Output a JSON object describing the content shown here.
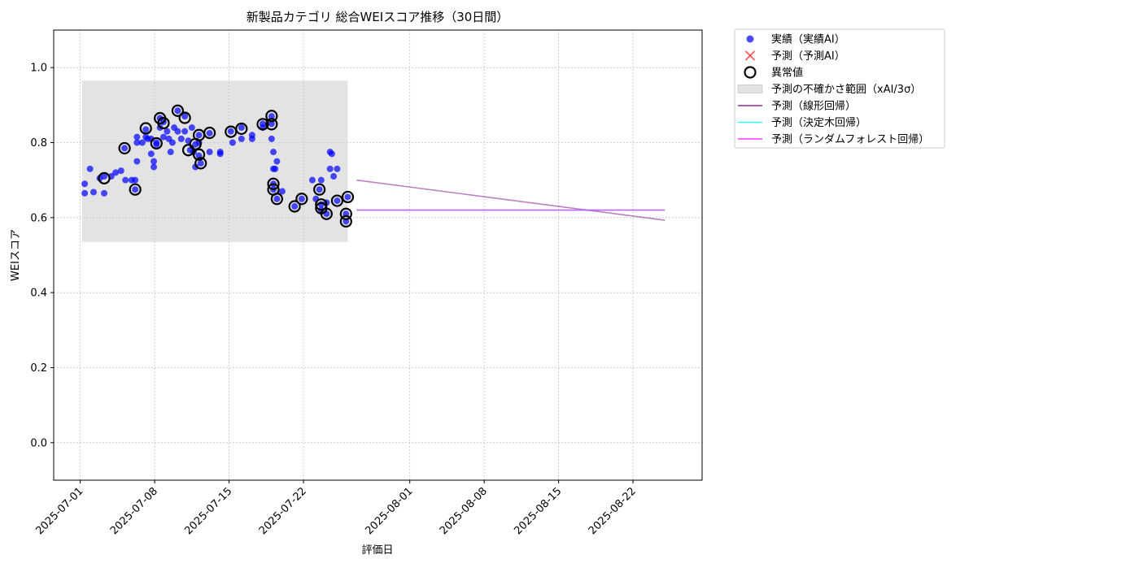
{
  "chart_data": {
    "type": "scatter",
    "title": "新製品カテゴリ 総合WEIスコア推移（30日間）",
    "xlabel": "評価日",
    "ylabel": "WEIスコア",
    "ylim": [
      -0.1,
      1.1
    ],
    "xlim": [
      "2025-06-28T12:00",
      "2025-08-28T12:00"
    ],
    "grid": true,
    "legend_position": "outside-top-right",
    "x_ticks": [
      "2025-07-01",
      "2025-07-08",
      "2025-07-15",
      "2025-07-22",
      "2025-08-01",
      "2025-08-08",
      "2025-08-15",
      "2025-08-22"
    ],
    "y_ticks": [
      0.0,
      0.2,
      0.4,
      0.6,
      0.8,
      1.0
    ],
    "y_tick_labels": [
      "0.0",
      "0.2",
      "0.4",
      "0.6",
      "0.8",
      "1.0"
    ],
    "legend": [
      {
        "label": "実績（実績AI）",
        "marker": "dot",
        "color": "#0000ff"
      },
      {
        "label": "予測（予測AI）",
        "marker": "x",
        "color": "#ff3333"
      },
      {
        "label": "異常値",
        "marker": "ring",
        "color": "#000000"
      },
      {
        "label": "予測の不確かさ範囲（xAI/3σ）",
        "marker": "band",
        "color": "#c8c8c8"
      },
      {
        "label": "予測（線形回帰）",
        "marker": "line",
        "color": "#912a9c"
      },
      {
        "label": "予測（決定木回帰）",
        "marker": "line",
        "color": "#00ffff"
      },
      {
        "label": "予測（ランダムフォレスト回帰）",
        "marker": "line",
        "color": "#ff00ff"
      }
    ],
    "actual": [
      [
        "2025-07-01T10:00",
        0.69
      ],
      [
        "2025-07-01T10:00",
        0.665
      ],
      [
        "2025-07-01T22:00",
        0.73
      ],
      [
        "2025-07-02T06:00",
        0.668
      ],
      [
        "2025-07-02T20:00",
        0.705
      ],
      [
        "2025-07-03T06:00",
        0.665
      ],
      [
        "2025-07-03T06:00",
        0.71
      ],
      [
        "2025-07-03T22:00",
        0.71
      ],
      [
        "2025-07-04T08:00",
        0.72
      ],
      [
        "2025-07-04T20:00",
        0.725
      ],
      [
        "2025-07-05T04:00",
        0.785
      ],
      [
        "2025-07-05T06:00",
        0.7
      ],
      [
        "2025-07-05T20:00",
        0.7
      ],
      [
        "2025-07-06T04:00",
        0.7
      ],
      [
        "2025-07-06T04:00",
        0.675
      ],
      [
        "2025-07-06T08:00",
        0.8
      ],
      [
        "2025-07-06T08:00",
        0.815
      ],
      [
        "2025-07-06T08:00",
        0.75
      ],
      [
        "2025-07-06T20:00",
        0.8
      ],
      [
        "2025-07-07T04:00",
        0.815
      ],
      [
        "2025-07-07T04:00",
        0.835
      ],
      [
        "2025-07-07T08:00",
        0.81
      ],
      [
        "2025-07-07T16:00",
        0.81
      ],
      [
        "2025-07-07T16:00",
        0.77
      ],
      [
        "2025-07-07T22:00",
        0.75
      ],
      [
        "2025-07-07T22:00",
        0.735
      ],
      [
        "2025-07-08T04:00",
        0.8
      ],
      [
        "2025-07-08T04:00",
        0.795
      ],
      [
        "2025-07-08T12:00",
        0.865
      ],
      [
        "2025-07-08T12:00",
        0.84
      ],
      [
        "2025-07-08T20:00",
        0.855
      ],
      [
        "2025-07-08T20:00",
        0.815
      ],
      [
        "2025-07-09T04:00",
        0.83
      ],
      [
        "2025-07-09T08:00",
        0.81
      ],
      [
        "2025-07-09T12:00",
        0.775
      ],
      [
        "2025-07-09T16:00",
        0.8
      ],
      [
        "2025-07-09T20:00",
        0.84
      ],
      [
        "2025-07-10T04:00",
        0.885
      ],
      [
        "2025-07-10T04:00",
        0.83
      ],
      [
        "2025-07-10T12:00",
        0.81
      ],
      [
        "2025-07-10T20:00",
        0.87
      ],
      [
        "2025-07-10T20:00",
        0.83
      ],
      [
        "2025-07-11T04:00",
        0.805
      ],
      [
        "2025-07-11T08:00",
        0.78
      ],
      [
        "2025-07-11T12:00",
        0.84
      ],
      [
        "2025-07-11T16:00",
        0.775
      ],
      [
        "2025-07-11T20:00",
        0.735
      ],
      [
        "2025-07-11T20:00",
        0.795
      ],
      [
        "2025-07-12T04:00",
        0.82
      ],
      [
        "2025-07-12T04:00",
        0.8
      ],
      [
        "2025-07-12T04:00",
        0.765
      ],
      [
        "2025-07-12T08:00",
        0.745
      ],
      [
        "2025-07-13T04:00",
        0.825
      ],
      [
        "2025-07-13T04:00",
        0.775
      ],
      [
        "2025-07-14T04:00",
        0.77
      ],
      [
        "2025-07-14T04:00",
        0.775
      ],
      [
        "2025-07-15T04:00",
        0.83
      ],
      [
        "2025-07-15T08:00",
        0.8
      ],
      [
        "2025-07-16T04:00",
        0.84
      ],
      [
        "2025-07-16T04:00",
        0.81
      ],
      [
        "2025-07-17T04:00",
        0.82
      ],
      [
        "2025-07-17T04:00",
        0.81
      ],
      [
        "2025-07-18T04:00",
        0.85
      ],
      [
        "2025-07-18T04:00",
        0.84
      ],
      [
        "2025-07-19T00:00",
        0.87
      ],
      [
        "2025-07-19T00:00",
        0.85
      ],
      [
        "2025-07-19T00:00",
        0.81
      ],
      [
        "2025-07-19T04:00",
        0.775
      ],
      [
        "2025-07-19T04:00",
        0.73
      ],
      [
        "2025-07-19T04:00",
        0.69
      ],
      [
        "2025-07-19T04:00",
        0.675
      ],
      [
        "2025-07-19T08:00",
        0.73
      ],
      [
        "2025-07-19T12:00",
        0.75
      ],
      [
        "2025-07-19T12:00",
        0.65
      ],
      [
        "2025-07-20T00:00",
        0.67
      ],
      [
        "2025-07-21T04:00",
        0.63
      ],
      [
        "2025-07-21T20:00",
        0.65
      ],
      [
        "2025-07-22T20:00",
        0.7
      ],
      [
        "2025-07-23T04:00",
        0.65
      ],
      [
        "2025-07-23T12:00",
        0.675
      ],
      [
        "2025-07-23T16:00",
        0.7
      ],
      [
        "2025-07-23T16:00",
        0.635
      ],
      [
        "2025-07-23T16:00",
        0.62
      ],
      [
        "2025-07-24T04:00",
        0.61
      ],
      [
        "2025-07-24T04:00",
        0.64
      ],
      [
        "2025-07-24T12:00",
        0.73
      ],
      [
        "2025-07-24T12:00",
        0.775
      ],
      [
        "2025-07-24T16:00",
        0.77
      ],
      [
        "2025-07-24T20:00",
        0.71
      ],
      [
        "2025-07-25T04:00",
        0.73
      ],
      [
        "2025-07-25T04:00",
        0.645
      ],
      [
        "2025-07-26T00:00",
        0.61
      ],
      [
        "2025-07-26T00:00",
        0.59
      ],
      [
        "2025-07-26T04:00",
        0.655
      ]
    ],
    "anomalies": [
      [
        "2025-07-03T06:00",
        0.705
      ],
      [
        "2025-07-05T04:00",
        0.785
      ],
      [
        "2025-07-06T04:00",
        0.675
      ],
      [
        "2025-07-07T04:00",
        0.838
      ],
      [
        "2025-07-08T04:00",
        0.798
      ],
      [
        "2025-07-08T12:00",
        0.865
      ],
      [
        "2025-07-08T20:00",
        0.852
      ],
      [
        "2025-07-10T04:00",
        0.885
      ],
      [
        "2025-07-10T20:00",
        0.866
      ],
      [
        "2025-07-11T04:00",
        0.78
      ],
      [
        "2025-07-11T20:00",
        0.796
      ],
      [
        "2025-07-12T04:00",
        0.82
      ],
      [
        "2025-07-12T04:00",
        0.768
      ],
      [
        "2025-07-12T08:00",
        0.745
      ],
      [
        "2025-07-13T04:00",
        0.826
      ],
      [
        "2025-07-15T04:00",
        0.829
      ],
      [
        "2025-07-16T04:00",
        0.837
      ],
      [
        "2025-07-18T04:00",
        0.849
      ],
      [
        "2025-07-19T00:00",
        0.871
      ],
      [
        "2025-07-19T00:00",
        0.849
      ],
      [
        "2025-07-19T04:00",
        0.69
      ],
      [
        "2025-07-19T04:00",
        0.675
      ],
      [
        "2025-07-19T12:00",
        0.65
      ],
      [
        "2025-07-21T04:00",
        0.63
      ],
      [
        "2025-07-21T20:00",
        0.65
      ],
      [
        "2025-07-23T12:00",
        0.675
      ],
      [
        "2025-07-23T16:00",
        0.635
      ],
      [
        "2025-07-23T16:00",
        0.625
      ],
      [
        "2025-07-24T04:00",
        0.61
      ],
      [
        "2025-07-25T04:00",
        0.645
      ],
      [
        "2025-07-26T00:00",
        0.61
      ],
      [
        "2025-07-26T00:00",
        0.59
      ],
      [
        "2025-07-26T04:00",
        0.655
      ]
    ],
    "uncertainty_band": {
      "x": [
        "2025-07-01T04:00",
        "2025-07-26T04:00"
      ],
      "y": [
        0.535,
        0.965
      ]
    },
    "forecast_lines": [
      {
        "name": "予測（線形回帰）",
        "color": "#912a9c",
        "x": [
          "2025-07-27T00:00",
          "2025-08-25T00:00"
        ],
        "y": [
          0.7,
          0.593
        ]
      },
      {
        "name": "予測（決定木回帰）",
        "color": "#00ffff",
        "x": [
          "2025-07-27T00:00",
          "2025-08-25T00:00"
        ],
        "y": [
          0.62,
          0.62
        ]
      },
      {
        "name": "予測（ランダムフォレスト回帰）",
        "color": "#ff00ff",
        "x": [
          "2025-07-27T00:00",
          "2025-08-25T00:00"
        ],
        "y": [
          0.62,
          0.62
        ]
      }
    ]
  }
}
